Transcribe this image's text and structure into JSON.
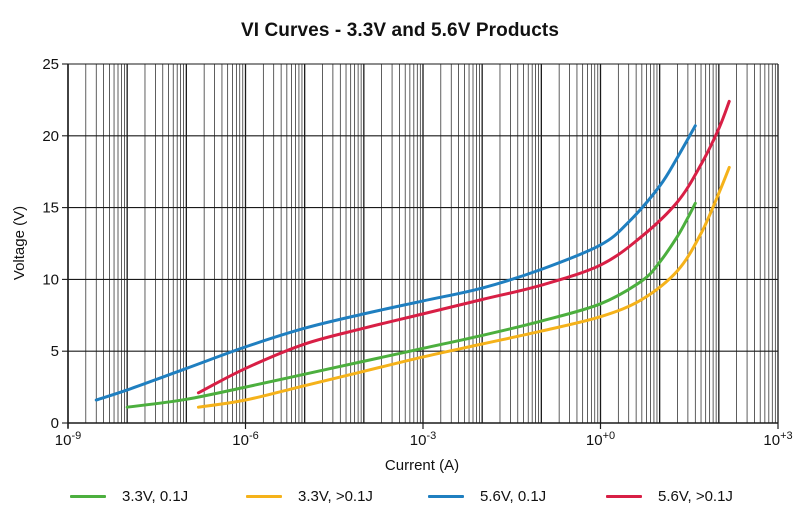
{
  "chart_data": {
    "type": "line",
    "title": "VI Curves - 3.3V and 5.6V Products",
    "xlabel": "Current (A)",
    "ylabel": "Voltage (V)",
    "x_scale": "log",
    "xlim": [
      1e-09,
      1000
    ],
    "ylim": [
      0,
      25
    ],
    "y_ticks": [
      0,
      5,
      10,
      15,
      20,
      25
    ],
    "x_tick_labels": [
      {
        "value": 1e-09,
        "base": "10",
        "exp": "-9"
      },
      {
        "value": 1e-06,
        "base": "10",
        "exp": "-6"
      },
      {
        "value": 0.001,
        "base": "10",
        "exp": "-3"
      },
      {
        "value": 1,
        "base": "10",
        "exp": "+0"
      },
      {
        "value": 1000,
        "base": "10",
        "exp": "+3"
      }
    ],
    "grid": true,
    "legend_position": "bottom",
    "series": [
      {
        "name": "3.3V, 0.1J",
        "color": "#4caf3e",
        "x": [
          1e-08,
          1e-07,
          1e-06,
          1e-05,
          0.0001,
          0.001,
          0.01,
          0.1,
          1,
          5,
          10,
          20,
          30,
          40
        ],
        "y": [
          1.1,
          1.65,
          2.5,
          3.4,
          4.3,
          5.2,
          6.1,
          7.1,
          8.3,
          9.9,
          11.2,
          13.0,
          14.3,
          15.3
        ]
      },
      {
        "name": "3.3V, >0.1J",
        "color": "#f5b21a",
        "x": [
          1.6e-07,
          1e-06,
          1e-05,
          0.0001,
          0.001,
          0.01,
          0.1,
          1,
          5,
          20,
          50,
          100,
          150
        ],
        "y": [
          1.1,
          1.6,
          2.6,
          3.6,
          4.6,
          5.5,
          6.4,
          7.4,
          8.6,
          10.6,
          13.2,
          16.0,
          17.8
        ]
      },
      {
        "name": "5.6V, 0.1J",
        "color": "#1f7fc0",
        "x": [
          3e-09,
          1e-08,
          1e-07,
          1e-06,
          1e-05,
          0.0001,
          0.001,
          0.01,
          0.1,
          1,
          3,
          10,
          20,
          40
        ],
        "y": [
          1.6,
          2.3,
          3.8,
          5.3,
          6.6,
          7.6,
          8.5,
          9.4,
          10.7,
          12.4,
          14.0,
          16.5,
          18.5,
          20.7
        ]
      },
      {
        "name": "5.6V, >0.1J",
        "color": "#d81f45",
        "x": [
          1.6e-07,
          1e-06,
          1e-05,
          0.0001,
          0.001,
          0.01,
          0.1,
          1,
          5,
          20,
          50,
          100,
          150
        ],
        "y": [
          2.1,
          3.8,
          5.5,
          6.6,
          7.6,
          8.6,
          9.6,
          11.0,
          13.0,
          15.4,
          18.0,
          20.5,
          22.4
        ]
      }
    ]
  }
}
